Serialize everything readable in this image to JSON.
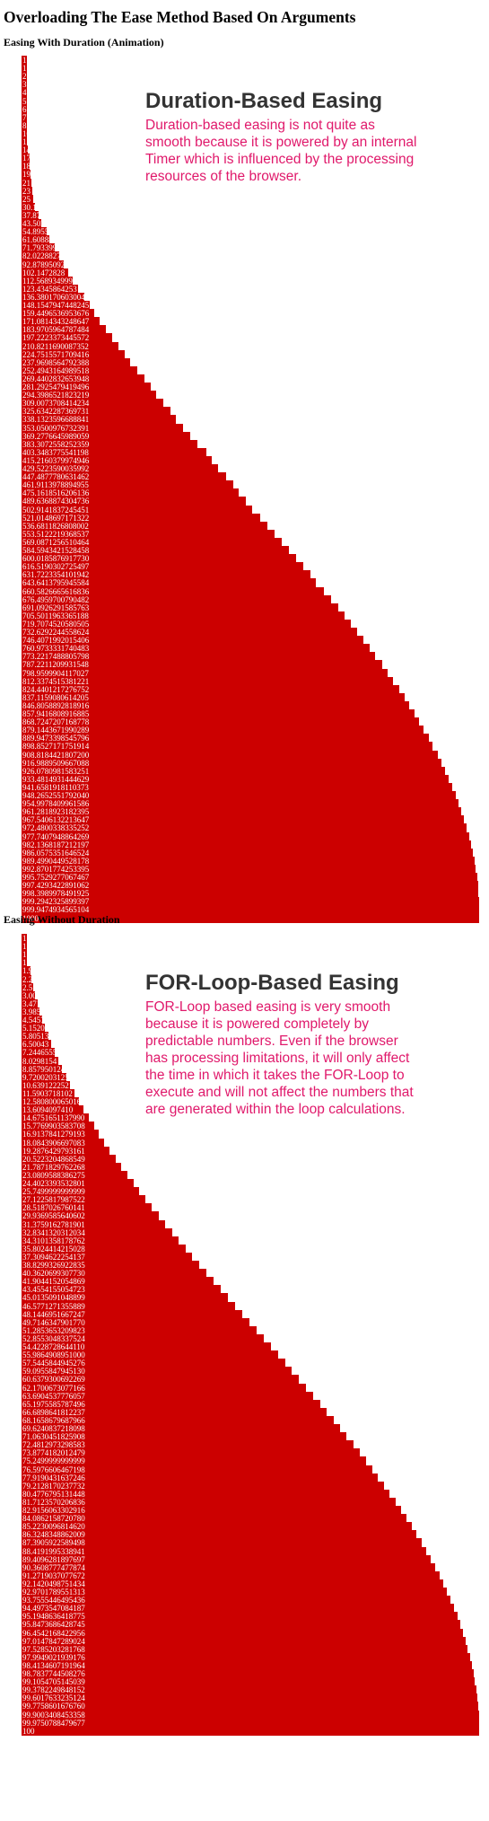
{
  "page": {
    "title": "Overloading The Ease Method Based On Arguments",
    "colors": {
      "bar": "#cc0000",
      "bar_text": "#ffffff",
      "callout_heading": "#333333",
      "callout_body": "#e0196b"
    }
  },
  "sections": [
    {
      "title": "Easing With Duration (Animation)",
      "callout": {
        "heading": "Duration-Based Easing",
        "body": "Duration-based easing is not quite as smooth because it is powered by an internal Timer which is influenced by the processing resources of the browser."
      },
      "max_value": 1000,
      "values": [
        "1",
        "1",
        "2",
        "3",
        "4",
        "5",
        "6",
        "7",
        "8",
        "10",
        "12",
        "14",
        "17",
        "18",
        "19",
        "21",
        "23",
        "25",
        "30.1",
        "37.87",
        "43.5027",
        "54.8955",
        "61.60888",
        "71.7933998",
        "82.0228827",
        "92.87895092",
        "102.1472828",
        "112.5689349990",
        "123.4345864253",
        "136.3801706030049",
        "148.1547947448245",
        "159.4496536953676",
        "171.0814343248647",
        "183.9705964787484",
        "197.2223373445572",
        "210.8211690087352",
        "224.7515571709416",
        "237.9698564792388",
        "252.4943164989518",
        "269.4402832653948",
        "281.2925479419496",
        "294.3986521823219",
        "309.0073708414234",
        "325.6342287369731",
        "338.1323596688841",
        "353.0500976732391",
        "369.2776645989059",
        "383.3072558252359",
        "403.3483775541198",
        "415.2160379974946",
        "429.5223590035992",
        "447.4877780631462",
        "461.9113978894955",
        "475.1618516206136",
        "489.6368874304736",
        "502.9141837245451",
        "521.0148697171322",
        "536.6811826808002",
        "553.5122219368537",
        "569.0871256510464",
        "584.5943421528458",
        "600.0185876917730",
        "616.5190302725497",
        "631.7223354101942",
        "643.6413795945584",
        "660.5826665616836",
        "676.4959700790482",
        "691.0926291585763",
        "705.5011963365188",
        "719.7074520580505",
        "732.6292244558624",
        "746.4071992015406",
        "760.9733331740483",
        "773.2217488805798",
        "787.2211209931548",
        "798.9599904117027",
        "812.3374515381221",
        "824.4401217276752",
        "837.1159080614205",
        "846.8058892818916",
        "857.9416808916885",
        "868.7247207168778",
        "879.1443671990289",
        "889.9473398545796",
        "898.8527171751914",
        "908.8184421807200",
        "916.9889509667088",
        "926.0780981583251",
        "933.4814931444629",
        "941.6581918110373",
        "948.2652551792040",
        "954.9978409961586",
        "961.2818923182395",
        "967.5406132213647",
        "972.4800338335252",
        "977.7407948864269",
        "982.1368187212197",
        "986.0575351646524",
        "989.4990449528178",
        "992.8701774253395",
        "995.7529277067467",
        "997.4293422891062",
        "998.3989978491925",
        "999.2942325899397",
        "999.9474934565104",
        "1000"
      ]
    },
    {
      "title": "Easing Without Duration",
      "callout": {
        "heading": "FOR-Loop-Based Easing",
        "body": "FOR-Loop based easing is very smooth because it is powered completely by predictable numbers. Even if the browser has processing limitations, it will only affect the time in which it takes the FOR-Loop to execute and will not affect the numbers that are generated within the loop calculations."
      },
      "max_value": 100,
      "values": [
        "1",
        "1",
        "1",
        "1",
        "1.9",
        "2.2",
        "2.5",
        "3.00",
        "3.471",
        "3.9852",
        "4.5457",
        "5.1520",
        "5.80513",
        "6.50043",
        "7.2446555",
        "8.0298154",
        "8.8579501246",
        "9.7200203125",
        "10.6391222521",
        "11.5903718102",
        "12.5808000650161",
        "13.6094097410",
        "14.6751651137990",
        "15.7769903583708",
        "16.9137841279193",
        "18.0843906697083",
        "19.2876429793161",
        "20.5223204868549",
        "21.7871829762268",
        "23.0809588386275",
        "24.4023393532801",
        "25.7499999999999",
        "27.1225817987522",
        "28.5187026760141",
        "29.9369585640602",
        "31.3759162781901",
        "32.8341320312034",
        "34.3101358178762",
        "35.8024414215028",
        "37.3094622254137",
        "38.8299326922835",
        "40.3620699307730",
        "41.9044152054869",
        "43.4554155054723",
        "45.0135091048899",
        "46.5771271355889",
        "48.1446951667247",
        "49.7146347901770",
        "51.2853653209823",
        "52.8553048337524",
        "54.4228728644110",
        "55.9864908951000",
        "57.5445844945276",
        "59.0955847945130",
        "60.6379300692269",
        "62.1700673077166",
        "63.6904537776057",
        "65.1975585787496",
        "66.6898641812237",
        "68.1658679687966",
        "69.6240837218098",
        "71.0630451825908",
        "72.4812973298583",
        "73.8774182012479",
        "75.2499999999999",
        "76.5976606467198",
        "77.9190431637246",
        "79.2128170237732",
        "80.4776795131448",
        "81.7123570206836",
        "82.9156063302916",
        "84.0862158720780",
        "85.2230096814620",
        "86.3248348862009",
        "87.3905922589498",
        "88.4191995338941",
        "89.4096281897697",
        "90.3608777477874",
        "91.2719037077672",
        "92.1420498751434",
        "92.9701789551313",
        "93.7555446495436",
        "94.4973547084187",
        "95.1948636418775",
        "95.8473686428745",
        "96.4542168422956",
        "97.0147847289024",
        "97.5285203281768",
        "97.9949021939176",
        "98.4134607191964",
        "98.7837744508276",
        "99.1054705145039",
        "99.3782249848152",
        "99.6017633235124",
        "99.7758601676760",
        "99.9003408453358",
        "99.9750788479677",
        "100"
      ]
    }
  ]
}
